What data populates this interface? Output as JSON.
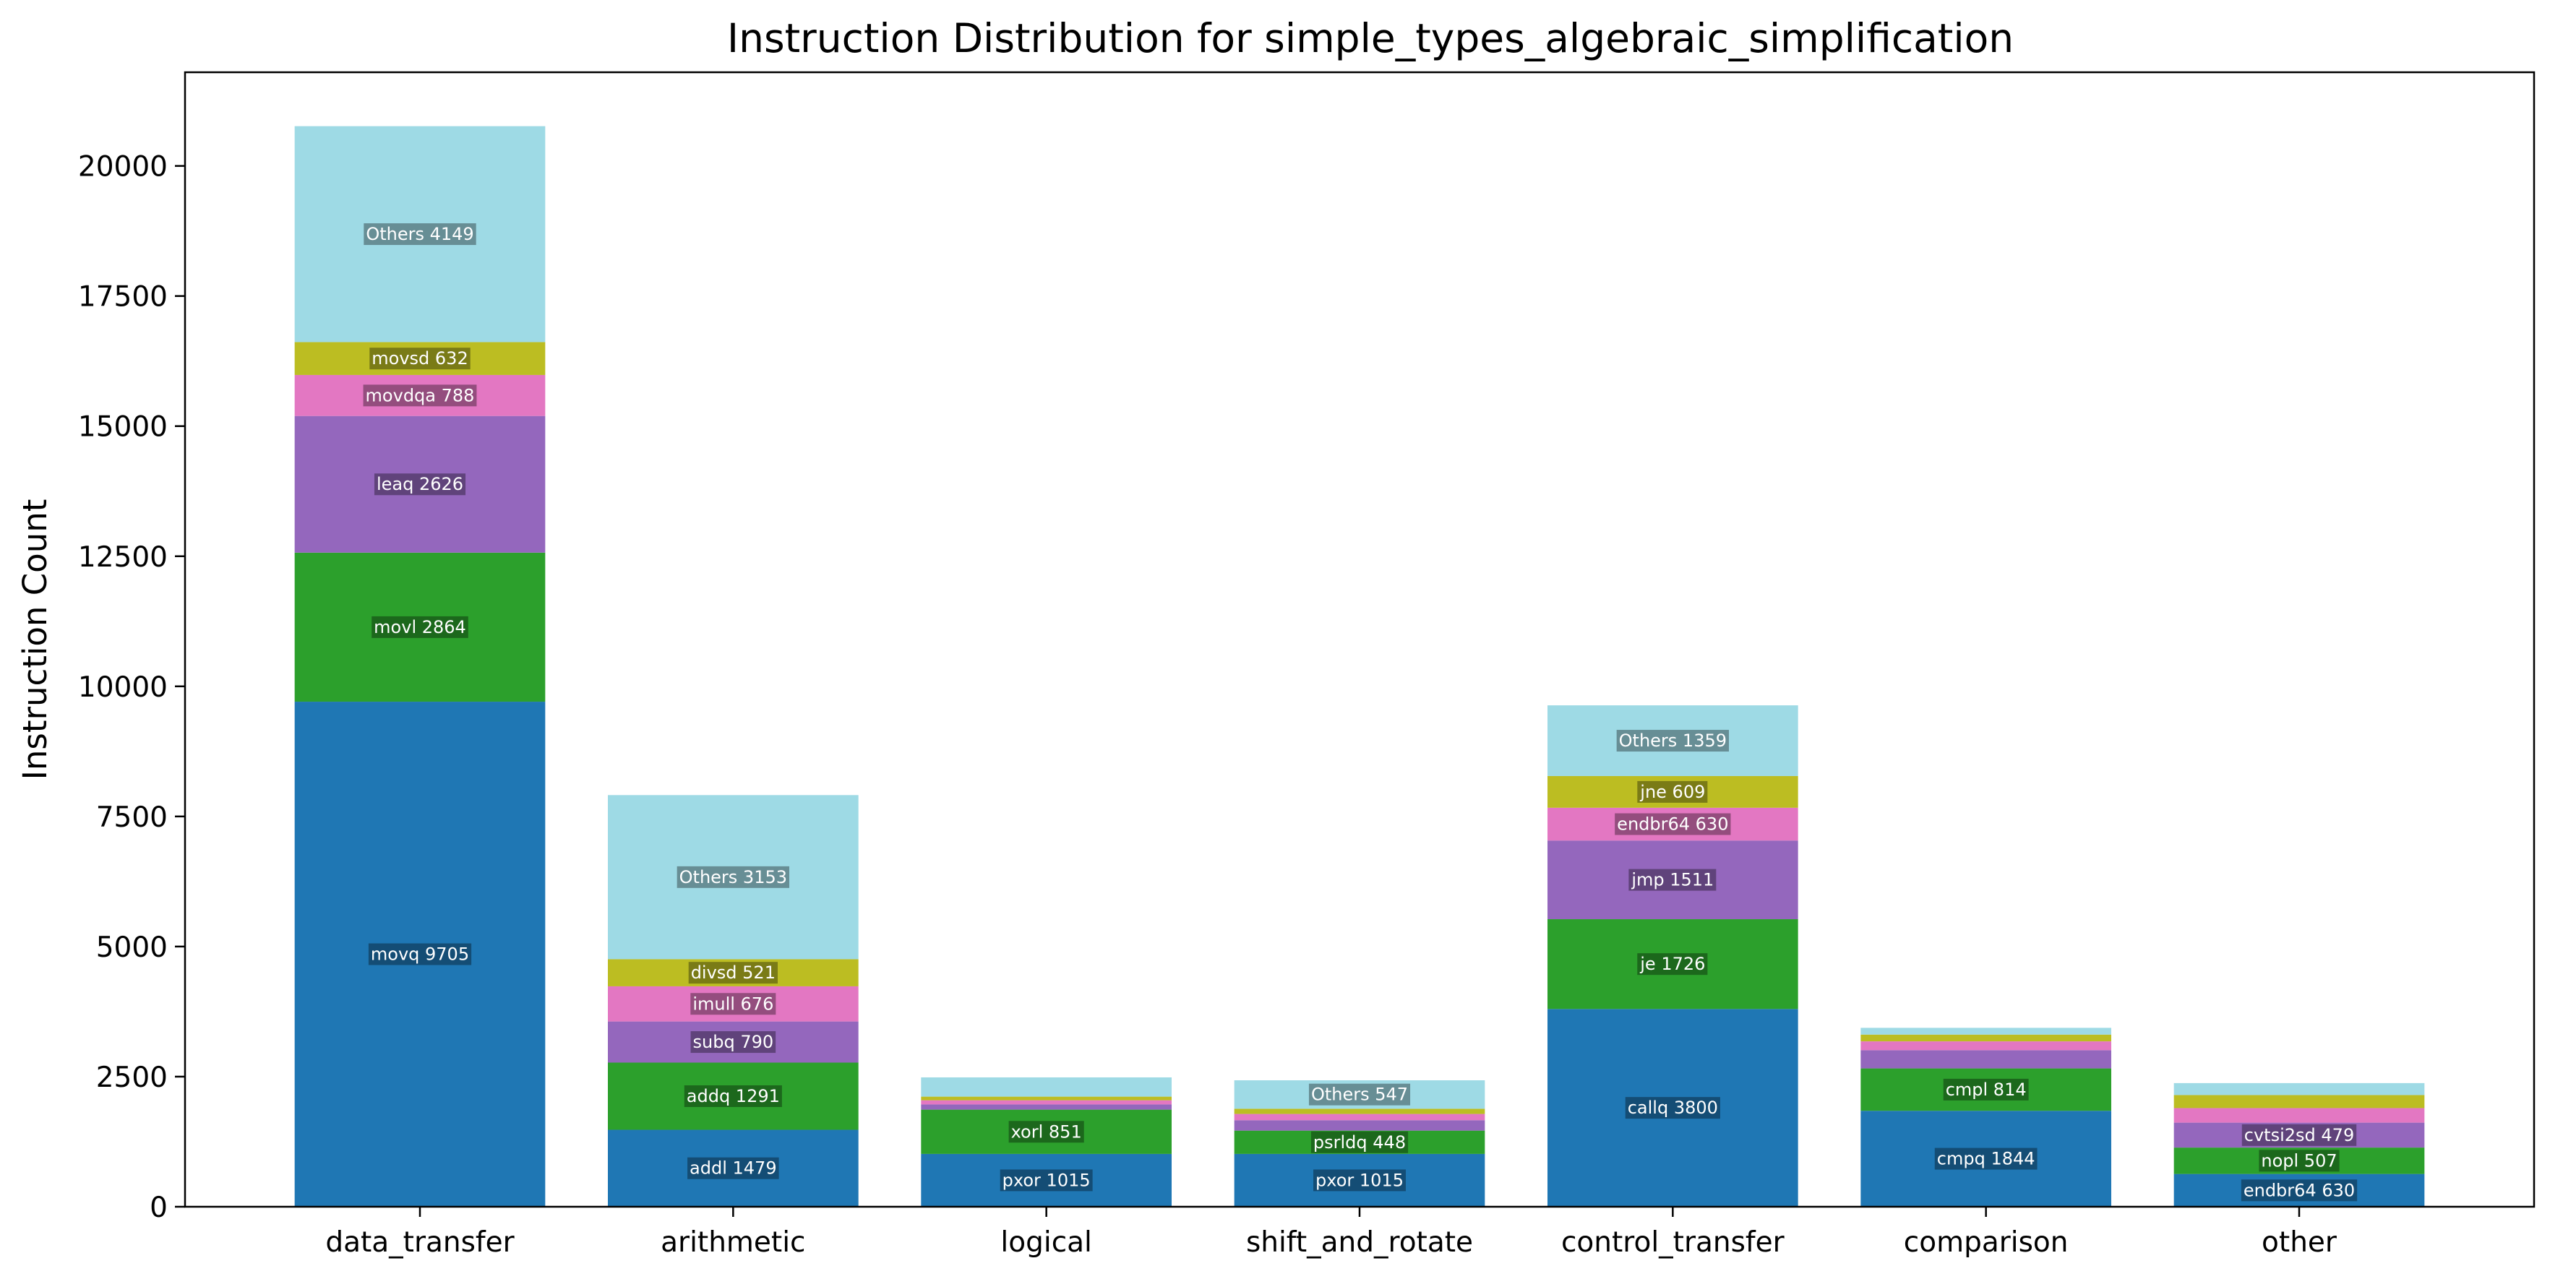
{
  "chart_data": {
    "type": "bar",
    "stacked": true,
    "title": "Instruction Distribution for simple_types_algebraic_simplification",
    "xlabel": "",
    "ylabel": "Instruction Count",
    "ylim": [
      0,
      21800
    ],
    "yticks": [
      0,
      2500,
      5000,
      7500,
      10000,
      12500,
      15000,
      17500,
      20000
    ],
    "grid": false,
    "legend": "none",
    "colors": [
      "#1f77b4",
      "#2ca02c",
      "#9467bd",
      "#e377c2",
      "#bcbd22",
      "#9edae5"
    ],
    "categories": [
      "data_transfer",
      "arithmetic",
      "logical",
      "shift_and_rotate",
      "control_transfer",
      "comparison",
      "other"
    ],
    "bars": [
      {
        "category": "data_transfer",
        "segments": [
          {
            "name": "movq",
            "value": 9705,
            "label": "movq 9705"
          },
          {
            "name": "movl",
            "value": 2864,
            "label": "movl 2864"
          },
          {
            "name": "leaq",
            "value": 2626,
            "label": "leaq 2626"
          },
          {
            "name": "movdqa",
            "value": 788,
            "label": "movdqa 788"
          },
          {
            "name": "movsd",
            "value": 632,
            "label": "movsd 632"
          },
          {
            "name": "Others",
            "value": 4149,
            "label": "Others 4149"
          }
        ]
      },
      {
        "category": "arithmetic",
        "segments": [
          {
            "name": "addl",
            "value": 1479,
            "label": "addl 1479"
          },
          {
            "name": "addq",
            "value": 1291,
            "label": "addq 1291"
          },
          {
            "name": "subq",
            "value": 790,
            "label": "subq 790"
          },
          {
            "name": "imull",
            "value": 676,
            "label": "imull 676"
          },
          {
            "name": "divsd",
            "value": 521,
            "label": "divsd 521"
          },
          {
            "name": "Others",
            "value": 3153,
            "label": "Others 3153"
          }
        ]
      },
      {
        "category": "logical",
        "segments": [
          {
            "value": 1015,
            "label": "pxor 1015"
          },
          {
            "value": 851,
            "label": "xorl 851"
          },
          {
            "value": 100,
            "label": ""
          },
          {
            "value": 80,
            "label": ""
          },
          {
            "value": 70,
            "label": ""
          },
          {
            "value": 370,
            "label": ""
          }
        ]
      },
      {
        "category": "shift_and_rotate",
        "segments": [
          {
            "value": 1015,
            "label": "pxor 1015"
          },
          {
            "value": 448,
            "label": "psrldq 448"
          },
          {
            "value": 200,
            "label": ""
          },
          {
            "value": 120,
            "label": ""
          },
          {
            "value": 100,
            "label": ""
          },
          {
            "value": 547,
            "label": "Others 547"
          }
        ]
      },
      {
        "category": "control_transfer",
        "segments": [
          {
            "name": "callq",
            "value": 3800,
            "label": "callq 3800"
          },
          {
            "name": "je",
            "value": 1726,
            "label": "je 1726"
          },
          {
            "name": "jmp",
            "value": 1511,
            "label": "jmp 1511"
          },
          {
            "name": "endbr64",
            "value": 630,
            "label": "endbr64 630"
          },
          {
            "name": "jne",
            "value": 609,
            "label": "jne 609"
          },
          {
            "name": "Others",
            "value": 1359,
            "label": "Others 1359"
          }
        ]
      },
      {
        "category": "comparison",
        "segments": [
          {
            "value": 1844,
            "label": "cmpq 1844"
          },
          {
            "value": 814,
            "label": "cmpl 814"
          },
          {
            "value": 350,
            "label": ""
          },
          {
            "value": 170,
            "label": ""
          },
          {
            "value": 130,
            "label": ""
          },
          {
            "value": 130,
            "label": ""
          }
        ]
      },
      {
        "category": "other",
        "segments": [
          {
            "value": 630,
            "label": "endbr64 630"
          },
          {
            "value": 507,
            "label": "nopl 507"
          },
          {
            "value": 479,
            "label": "cvtsi2sd 479"
          },
          {
            "value": 280,
            "label": ""
          },
          {
            "value": 250,
            "label": ""
          },
          {
            "value": 230,
            "label": ""
          }
        ]
      }
    ]
  }
}
